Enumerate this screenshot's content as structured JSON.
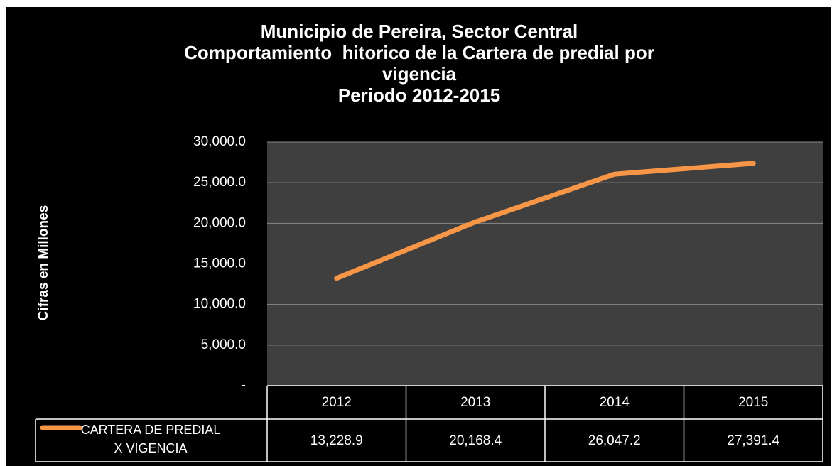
{
  "chart_data": {
    "type": "line",
    "title": [
      "Municipio de Pereira, Sector Central",
      "Comportamiento  hitorico de la Cartera de predial por",
      "vigencia",
      "Periodo 2012-2015"
    ],
    "y_label": "Cifras en Millones",
    "categories": [
      "2012",
      "2013",
      "2014",
      "2015"
    ],
    "series": [
      {
        "name": "CARTERA DE PREDIAL X VIGENCIA",
        "color": "#f79646",
        "values": [
          13228.9,
          20168.4,
          26047.2,
          27391.4
        ],
        "value_labels": [
          "13,228.9",
          "20,168.4",
          "26,047.2",
          "27,391.4"
        ]
      }
    ],
    "ylim": [
      0,
      30000
    ],
    "yticks": [
      {
        "value": 0,
        "label": "-"
      },
      {
        "value": 5000,
        "label": "5,000.0"
      },
      {
        "value": 10000,
        "label": "10,000.0"
      },
      {
        "value": 15000,
        "label": "15,000.0"
      },
      {
        "value": 20000,
        "label": "20,000.0"
      },
      {
        "value": 25000,
        "label": "25,000.0"
      },
      {
        "value": 30000,
        "label": "30,000.0"
      }
    ],
    "grid": true
  }
}
